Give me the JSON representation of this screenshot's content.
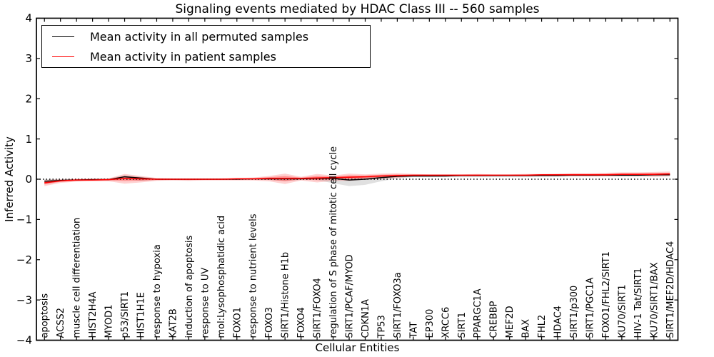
{
  "title": "Signaling events mediated by HDAC Class III -- 560 samples",
  "axes": {
    "xlabel": "Cellular Entities",
    "ylabel": "Inferred Activity",
    "ytick_labels": [
      "4",
      "3",
      "2",
      "1",
      "0",
      "−1",
      "−2",
      "−3",
      "−4"
    ],
    "ytick_values": [
      4,
      3,
      2,
      1,
      0,
      -1,
      -2,
      -3,
      -4
    ]
  },
  "legend": {
    "items": [
      {
        "label": "Mean activity in all permuted samples",
        "color": "#000000"
      },
      {
        "label": "Mean activity in patient samples",
        "color": "#ff0000"
      }
    ]
  },
  "colors": {
    "patient": "#ff0000",
    "permuted": "#000000",
    "patient_band": "#ff0000",
    "permuted_band": "#000000",
    "axis": "#000000",
    "background": "#ffffff"
  },
  "chart_data": {
    "type": "line",
    "title": "Signaling events mediated by HDAC Class III -- 560 samples",
    "xlabel": "Cellular Entities",
    "ylabel": "Inferred Activity",
    "ylim": [
      -4,
      4
    ],
    "yticks": [
      4,
      3,
      2,
      1,
      0,
      -1,
      -2,
      -3,
      -4
    ],
    "zero_line": "dotted",
    "legend_position": "upper left",
    "grid": false,
    "categories": [
      "apoptosis",
      "ACSS2",
      "muscle cell differentiation",
      "HIST2H4A",
      "MYOD1",
      "p53/SIRT1",
      "HIST1H1E",
      "response to hypoxia",
      "KAT2B",
      "induction of apoptosis",
      "response to UV",
      "mol:Lysophosphatidic acid",
      "FOXO1",
      "response to nutrient levels",
      "FOXO3",
      "SIRT1/Histone H1b",
      "FOXO4",
      "SIRT1/FOXO4",
      "regulation of S phase of mitotic cell cycle",
      "SIRT1/PCAF/MYOD",
      "CDKN1A",
      "TP53",
      "SIRT1/FOXO3a",
      "TAT",
      "EP300",
      "XRCC6",
      "SIRT1",
      "PPARGC1A",
      "CREBBP",
      "MEF2D",
      "BAX",
      "FHL2",
      "HDAC4",
      "SIRT1/p300",
      "SIRT1/PGC1A",
      "FOXO1/FHL2/SIRT1",
      "KU70/SIRT1",
      "HIV-1 Tat/SIRT1",
      "KU70/SIRT1/BAX",
      "SIRT1/MEF2D/HDAC4"
    ],
    "series": [
      {
        "name": "Mean activity in all permuted samples",
        "color": "#000000",
        "values": [
          -0.05,
          -0.03,
          -0.02,
          -0.01,
          -0.01,
          0.06,
          0.03,
          0.0,
          0.0,
          0.0,
          0.0,
          0.0,
          0.0,
          0.01,
          0.01,
          0.01,
          0.01,
          0.02,
          0.02,
          -0.02,
          0.0,
          0.04,
          0.07,
          0.08,
          0.08,
          0.08,
          0.09,
          0.09,
          0.09,
          0.09,
          0.09,
          0.09,
          0.09,
          0.1,
          0.1,
          0.1,
          0.1,
          0.1,
          0.11,
          0.11
        ]
      },
      {
        "name": "Mean activity in patient samples",
        "color": "#ff0000",
        "values": [
          -0.09,
          -0.04,
          -0.02,
          -0.02,
          -0.01,
          0.02,
          0.01,
          0.0,
          0.0,
          0.0,
          0.0,
          0.0,
          0.01,
          0.01,
          0.02,
          0.02,
          0.02,
          0.03,
          0.04,
          0.05,
          0.06,
          0.08,
          0.09,
          0.1,
          0.1,
          0.1,
          0.1,
          0.1,
          0.1,
          0.1,
          0.1,
          0.11,
          0.11,
          0.11,
          0.11,
          0.11,
          0.12,
          0.12,
          0.12,
          0.13
        ]
      }
    ],
    "bands": [
      {
        "name": "patient samples range",
        "color": "#ff0000",
        "upper": [
          -0.02,
          0.0,
          0.01,
          0.02,
          0.02,
          0.13,
          0.08,
          0.03,
          0.02,
          0.02,
          0.02,
          0.02,
          0.03,
          0.04,
          0.08,
          0.14,
          0.06,
          0.13,
          0.09,
          0.14,
          0.12,
          0.14,
          0.15,
          0.13,
          0.12,
          0.12,
          0.12,
          0.13,
          0.12,
          0.12,
          0.13,
          0.13,
          0.14,
          0.15,
          0.15,
          0.16,
          0.17,
          0.17,
          0.18,
          0.19
        ],
        "lower": [
          -0.17,
          -0.09,
          -0.06,
          -0.05,
          -0.05,
          -0.11,
          -0.08,
          -0.04,
          -0.03,
          -0.04,
          -0.03,
          -0.03,
          -0.03,
          -0.03,
          -0.05,
          -0.12,
          -0.03,
          -0.08,
          -0.04,
          -0.04,
          -0.01,
          0.01,
          0.03,
          0.07,
          0.08,
          0.08,
          0.08,
          0.07,
          0.08,
          0.08,
          0.07,
          0.08,
          0.08,
          0.08,
          0.07,
          0.07,
          0.07,
          0.07,
          0.06,
          0.07
        ]
      },
      {
        "name": "permuted samples range",
        "color": "#000000",
        "upper": [
          0.0,
          0.0,
          0.0,
          0.01,
          0.01,
          0.1,
          0.06,
          0.01,
          0.01,
          0.01,
          0.01,
          0.01,
          0.01,
          0.02,
          0.02,
          0.03,
          0.02,
          0.04,
          0.04,
          0.03,
          0.04,
          0.07,
          0.09,
          0.1,
          0.1,
          0.1,
          0.11,
          0.11,
          0.11,
          0.11,
          0.11,
          0.11,
          0.11,
          0.12,
          0.12,
          0.12,
          0.12,
          0.13,
          0.13,
          0.13
        ],
        "lower": [
          -0.1,
          -0.06,
          -0.04,
          -0.03,
          -0.03,
          0.0,
          -0.04,
          -0.02,
          -0.02,
          -0.02,
          -0.01,
          -0.01,
          -0.01,
          -0.01,
          -0.02,
          -0.04,
          -0.02,
          -0.02,
          -0.1,
          -0.17,
          -0.14,
          -0.05,
          0.02,
          0.05,
          0.05,
          0.06,
          0.06,
          0.06,
          0.06,
          0.06,
          0.06,
          0.07,
          0.07,
          0.07,
          0.07,
          0.08,
          0.08,
          0.08,
          0.08,
          0.08
        ]
      }
    ]
  }
}
